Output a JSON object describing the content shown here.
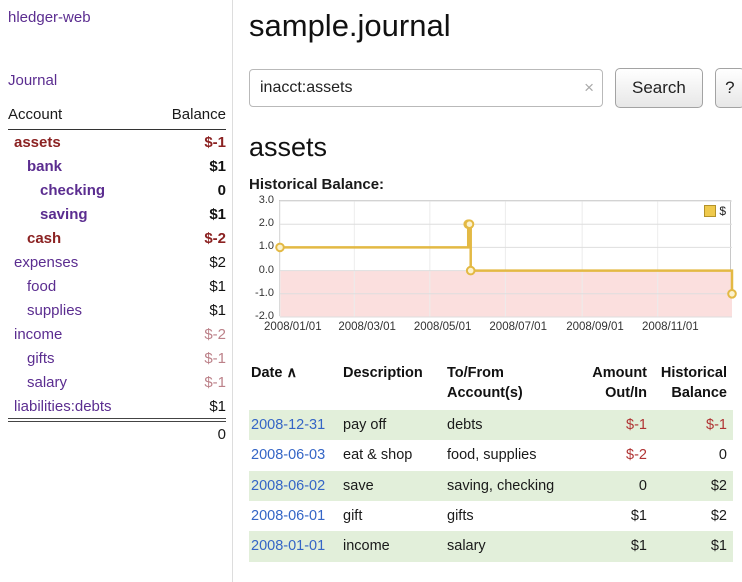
{
  "app": {
    "title": "hledger-web",
    "journal_link": "Journal"
  },
  "sidebar": {
    "accounts_header": "Account",
    "balance_header": "Balance",
    "total": "0",
    "accounts": [
      {
        "name": "assets",
        "balance": "$-1",
        "indent": 0,
        "bold": true,
        "name_style": "neg",
        "balance_style": "neg"
      },
      {
        "name": "bank",
        "balance": "$1",
        "indent": 1,
        "bold": true,
        "name_style": "link",
        "balance_style": "pos"
      },
      {
        "name": "checking",
        "balance": "0",
        "indent": 2,
        "bold": true,
        "name_style": "link",
        "balance_style": "pos"
      },
      {
        "name": "saving",
        "balance": "$1",
        "indent": 2,
        "bold": true,
        "name_style": "link",
        "balance_style": "pos"
      },
      {
        "name": "cash",
        "balance": "$-2",
        "indent": 1,
        "bold": true,
        "name_style": "neg",
        "balance_style": "neg"
      },
      {
        "name": "expenses",
        "balance": "$2",
        "indent": 0,
        "bold": false,
        "name_style": "link",
        "balance_style": "pos"
      },
      {
        "name": "food",
        "balance": "$1",
        "indent": 1,
        "bold": false,
        "name_style": "link",
        "balance_style": "pos"
      },
      {
        "name": "supplies",
        "balance": "$1",
        "indent": 1,
        "bold": false,
        "name_style": "link",
        "balance_style": "pos"
      },
      {
        "name": "income",
        "balance": "$-2",
        "indent": 0,
        "bold": false,
        "name_style": "link",
        "balance_style": "soft"
      },
      {
        "name": "gifts",
        "balance": "$-1",
        "indent": 1,
        "bold": false,
        "name_style": "link",
        "balance_style": "soft"
      },
      {
        "name": "salary",
        "balance": "$-1",
        "indent": 1,
        "bold": false,
        "name_style": "link",
        "balance_style": "soft"
      },
      {
        "name": "liabilities:debts",
        "balance": "$1",
        "indent": 0,
        "bold": false,
        "name_style": "link",
        "balance_style": "pos"
      }
    ]
  },
  "main": {
    "title": "sample.journal",
    "search": {
      "value": "inacct:assets",
      "clear_icon": "×",
      "button_label": "Search",
      "help_label": "?"
    },
    "account_heading": "assets",
    "chart_label": "Historical Balance:"
  },
  "chart_data": {
    "type": "line",
    "step": true,
    "title": "Historical Balance",
    "ylim": [
      -2,
      3
    ],
    "yticks": [
      3.0,
      2.0,
      1.0,
      0.0,
      -1.0,
      -2.0
    ],
    "x_range": [
      "2008-01-01",
      "2008-12-31"
    ],
    "xtick_dates": [
      "2008-01-01",
      "2008-03-01",
      "2008-05-01",
      "2008-07-01",
      "2008-09-01",
      "2008-11-01"
    ],
    "xtick_labels": [
      "2008/01/01",
      "2008/03/01",
      "2008/05/01",
      "2008/07/01",
      "2008/09/01",
      "2008/11/01"
    ],
    "legend": {
      "label": "$",
      "position": "top-right"
    },
    "series": [
      {
        "name": "$",
        "points": [
          {
            "date": "2008-01-01",
            "value": 1
          },
          {
            "date": "2008-06-01",
            "value": 2
          },
          {
            "date": "2008-06-02",
            "value": 2
          },
          {
            "date": "2008-06-03",
            "value": 0
          },
          {
            "date": "2008-12-31",
            "value": -1
          }
        ]
      }
    ],
    "colors": {
      "line": "#E3B944",
      "marker_fill": "#FBF2CF",
      "negative_region": "#FBDFDE",
      "grid": "#DEDEDE"
    }
  },
  "register": {
    "headers": {
      "date": "Date",
      "sort_icon": "∧",
      "description": "Description",
      "account_line1": "To/From",
      "account_line2": "Account(s)",
      "amount_line1": "Amount",
      "amount_line2": "Out/In",
      "balance_line1": "Historical",
      "balance_line2": "Balance"
    },
    "rows": [
      {
        "date": "2008-12-31",
        "description": "pay off",
        "accounts": "debts",
        "amount": "$-1",
        "balance": "$-1",
        "amount_negative": true,
        "balance_negative": true,
        "shaded": true
      },
      {
        "date": "2008-06-03",
        "description": "eat & shop",
        "accounts": "food, supplies",
        "amount": "$-2",
        "balance": "0",
        "amount_negative": true,
        "balance_negative": false,
        "shaded": false
      },
      {
        "date": "2008-06-02",
        "description": "save",
        "accounts": "saving, checking",
        "amount": "0",
        "balance": "$2",
        "amount_negative": false,
        "balance_negative": false,
        "shaded": true
      },
      {
        "date": "2008-06-01",
        "description": "gift",
        "accounts": "gifts",
        "amount": "$1",
        "balance": "$2",
        "amount_negative": false,
        "balance_negative": false,
        "shaded": false
      },
      {
        "date": "2008-01-01",
        "description": "income",
        "accounts": "salary",
        "amount": "$1",
        "balance": "$1",
        "amount_negative": false,
        "balance_negative": false,
        "shaded": true
      }
    ]
  },
  "colors": {
    "link_purple": "#5B2D90",
    "date_blue": "#3465C6",
    "negative_red": "#B03333",
    "dark_negative": "#8B2222",
    "soft_negative": "#BC8189",
    "row_green": "#E2EFDA"
  }
}
